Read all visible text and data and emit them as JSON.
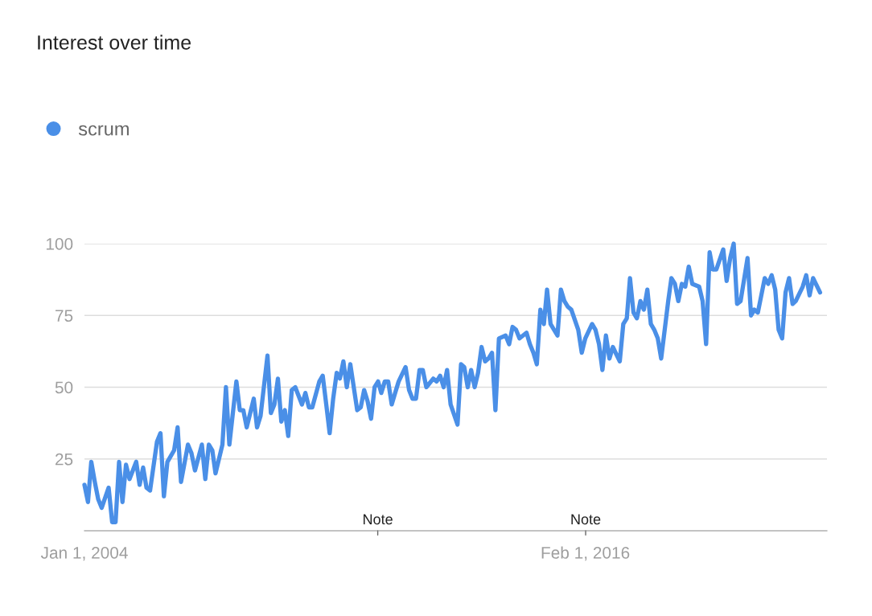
{
  "chart_data": {
    "type": "line",
    "title": "Interest over time",
    "x": [
      "2004-01",
      "2004-02",
      "2004-03",
      "2004-04",
      "2004-05",
      "2004-06",
      "2004-08",
      "2004-09",
      "2004-10",
      "2004-11",
      "2004-12",
      "2005-01",
      "2005-02",
      "2005-04",
      "2005-05",
      "2005-06",
      "2005-07",
      "2005-08",
      "2005-10",
      "2005-11",
      "2005-12",
      "2006-01",
      "2006-03",
      "2006-04",
      "2006-05",
      "2006-07",
      "2006-08",
      "2006-09",
      "2006-11",
      "2006-12",
      "2007-01",
      "2007-02",
      "2007-03",
      "2007-05",
      "2007-06",
      "2007-07",
      "2007-09",
      "2007-10",
      "2007-11",
      "2007-12",
      "2008-02",
      "2008-03",
      "2008-04",
      "2008-06",
      "2008-07",
      "2008-08",
      "2008-09",
      "2008-10",
      "2008-11",
      "2008-12",
      "2009-01",
      "2009-02",
      "2009-04",
      "2009-05",
      "2009-06",
      "2009-07",
      "2009-09",
      "2009-10",
      "2009-11",
      "2009-12",
      "2010-01",
      "2010-02",
      "2010-03",
      "2010-04",
      "2010-05",
      "2010-06",
      "2010-08",
      "2010-09",
      "2010-10",
      "2010-11",
      "2010-12",
      "2011-01",
      "2011-02",
      "2011-03",
      "2011-04",
      "2011-05",
      "2011-06",
      "2011-07",
      "2011-08",
      "2011-10",
      "2011-11",
      "2011-12",
      "2012-01",
      "2012-02",
      "2012-03",
      "2012-04",
      "2012-06",
      "2012-07",
      "2012-08",
      "2012-09",
      "2012-10",
      "2012-11",
      "2013-01",
      "2013-02",
      "2013-03",
      "2013-04",
      "2013-05",
      "2013-06",
      "2013-07",
      "2013-08",
      "2013-09",
      "2013-10",
      "2013-11",
      "2013-12",
      "2014-01",
      "2014-03",
      "2014-04",
      "2014-05",
      "2014-06",
      "2014-07",
      "2014-09",
      "2014-10",
      "2014-11",
      "2014-12",
      "2015-01",
      "2015-02",
      "2015-03",
      "2015-04",
      "2015-06",
      "2015-07",
      "2015-08",
      "2015-09",
      "2015-10",
      "2015-12",
      "2016-01",
      "2016-02",
      "2016-04",
      "2016-05",
      "2016-06",
      "2016-07",
      "2016-08",
      "2016-09",
      "2016-10",
      "2016-12",
      "2017-01",
      "2017-02",
      "2017-03",
      "2017-04",
      "2017-05",
      "2017-06",
      "2017-07",
      "2017-08",
      "2017-09",
      "2017-10",
      "2017-11",
      "2017-12",
      "2018-02",
      "2018-03",
      "2018-04",
      "2018-05",
      "2018-06",
      "2018-07",
      "2018-08",
      "2018-09",
      "2018-11",
      "2018-12",
      "2019-01",
      "2019-02",
      "2019-03",
      "2019-04",
      "2019-06",
      "2019-07",
      "2019-08",
      "2019-09",
      "2019-10",
      "2019-11",
      "2020-01",
      "2020-02",
      "2020-03",
      "2020-04",
      "2020-06",
      "2020-07",
      "2020-08",
      "2020-09",
      "2020-10",
      "2020-11",
      "2020-12",
      "2021-01",
      "2021-02",
      "2021-03",
      "2021-05",
      "2021-06",
      "2021-07",
      "2021-08",
      "2021-10"
    ],
    "series": [
      {
        "name": "scrum",
        "color": "#4a8fe7",
        "values": [
          16,
          10,
          24,
          17,
          11,
          8,
          15,
          3,
          3,
          24,
          10,
          23,
          18,
          24,
          16,
          22,
          15,
          14,
          31,
          34,
          12,
          24,
          28,
          36,
          17,
          30,
          27,
          21,
          30,
          18,
          30,
          28,
          20,
          30,
          50,
          30,
          52,
          42,
          42,
          36,
          46,
          36,
          40,
          61,
          41,
          44,
          53,
          38,
          42,
          33,
          49,
          50,
          44,
          48,
          43,
          43,
          52,
          54,
          44,
          34,
          46,
          55,
          53,
          59,
          50,
          58,
          42,
          43,
          49,
          45,
          39,
          50,
          52,
          48,
          52,
          52,
          44,
          48,
          52,
          57,
          49,
          46,
          46,
          56,
          56,
          50,
          53,
          52,
          54,
          50,
          56,
          44,
          37,
          58,
          57,
          50,
          56,
          50,
          55,
          64,
          59,
          60,
          62,
          42,
          67,
          68,
          65,
          71,
          70,
          67,
          69,
          65,
          62,
          58,
          77,
          72,
          84,
          72,
          68,
          84,
          80,
          78,
          77,
          70,
          62,
          67,
          72,
          70,
          65,
          56,
          68,
          60,
          64,
          59,
          72,
          74,
          88,
          76,
          74,
          80,
          77,
          84,
          72,
          70,
          67,
          60,
          80,
          88,
          86,
          80,
          86,
          85,
          92,
          86,
          85,
          80,
          65,
          97,
          91,
          91,
          98,
          87,
          95,
          100,
          79,
          80,
          95,
          75,
          77,
          76,
          88,
          86,
          89,
          84,
          70,
          67,
          83,
          88,
          79,
          80,
          85,
          89,
          82,
          88,
          83
        ]
      }
    ],
    "xlim": [
      "2004-01-01",
      "2021-12-01"
    ],
    "xticks": [
      {
        "value": "2004-01-01",
        "label": "Jan 1, 2004"
      },
      {
        "value": "2016-02-01",
        "label": "Feb 1, 2016"
      }
    ],
    "ylim": [
      0,
      100
    ],
    "yticks": [
      25,
      50,
      75,
      100
    ],
    "annotations": [
      "Note",
      "Note"
    ],
    "grid": "y",
    "legend": "top left",
    "marker": "none",
    "line_style": "solid"
  }
}
